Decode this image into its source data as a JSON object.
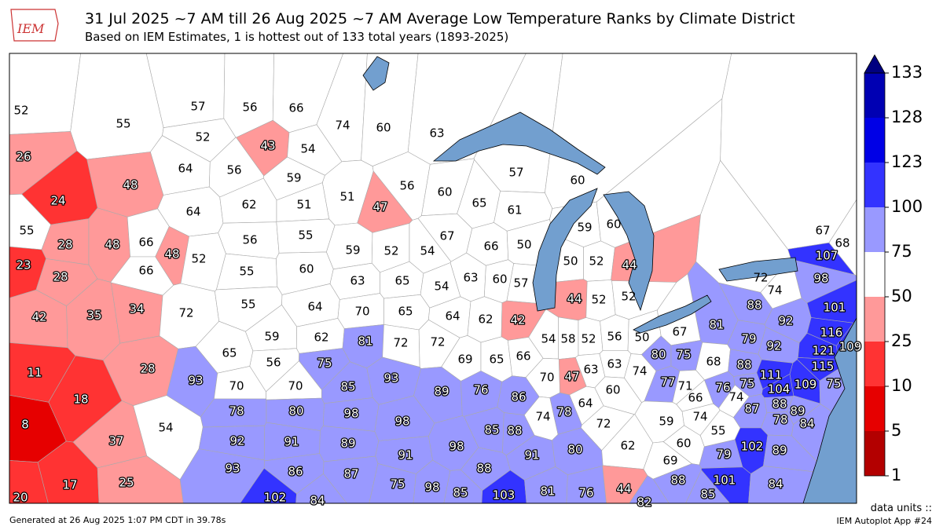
{
  "header": {
    "logo": "IEM",
    "title": "31 Jul 2025 ~7 AM till 26 Aug 2025 ~7 AM Average Low Temperature Ranks by Climate District",
    "subtitle": "Based on IEM Estimates, 1 is hottest out of 133 total years (1893-2025)"
  },
  "districts": [
    52,
    55,
    26,
    48,
    24,
    57,
    56,
    66,
    74,
    60,
    63,
    52,
    43,
    54,
    64,
    56,
    59,
    57,
    60,
    51,
    56,
    60,
    65,
    61,
    47,
    64,
    62,
    51,
    55,
    28,
    48,
    66,
    56,
    55,
    67,
    59,
    60,
    48,
    52,
    23,
    66,
    28,
    55,
    60,
    59,
    52,
    54,
    66,
    50,
    50,
    52,
    44,
    67,
    68,
    107,
    98,
    72,
    74,
    63,
    65,
    54,
    63,
    60,
    57,
    44,
    52,
    52,
    88,
    101,
    42,
    35,
    34,
    72,
    55,
    64,
    70,
    65,
    64,
    62,
    42,
    81,
    92,
    79,
    92,
    116,
    121,
    109,
    59,
    62,
    81,
    72,
    72,
    54,
    58,
    52,
    56,
    50,
    67,
    11,
    28,
    93,
    65,
    56,
    75,
    69,
    65,
    66,
    80,
    75,
    68,
    88,
    115,
    111,
    70,
    70,
    85,
    93,
    89,
    76,
    86,
    70,
    47,
    63,
    63,
    74,
    77,
    71,
    76,
    75,
    104,
    109,
    75,
    18,
    78,
    80,
    98,
    60,
    66,
    74,
    88,
    89,
    64,
    87,
    78,
    84,
    8,
    54,
    98,
    85,
    88,
    74,
    78,
    72,
    59,
    74,
    55,
    92,
    91,
    89,
    37,
    98,
    60,
    102,
    89,
    91,
    91,
    80,
    62,
    79,
    69,
    93,
    86,
    87,
    88,
    17,
    25,
    88,
    101,
    84,
    75,
    98,
    85,
    103,
    81,
    76,
    44,
    20,
    102,
    84,
    82,
    85
  ],
  "colorbar": {
    "ticks": [
      1,
      5,
      10,
      25,
      50,
      75,
      100,
      123,
      128,
      133
    ],
    "colors": [
      "#b30000",
      "#e60000",
      "#ff3333",
      "#ff9999",
      "#ffffff",
      "#9999ff",
      "#3333ff",
      "#0000e6",
      "#0000b3"
    ],
    "extend_color": "#000080"
  },
  "footer": {
    "generated": "Generated at 26 Aug 2025 1:07 PM CDT in 39.78s",
    "units": "data units ::",
    "app": "IEM Autoplot App #24"
  }
}
